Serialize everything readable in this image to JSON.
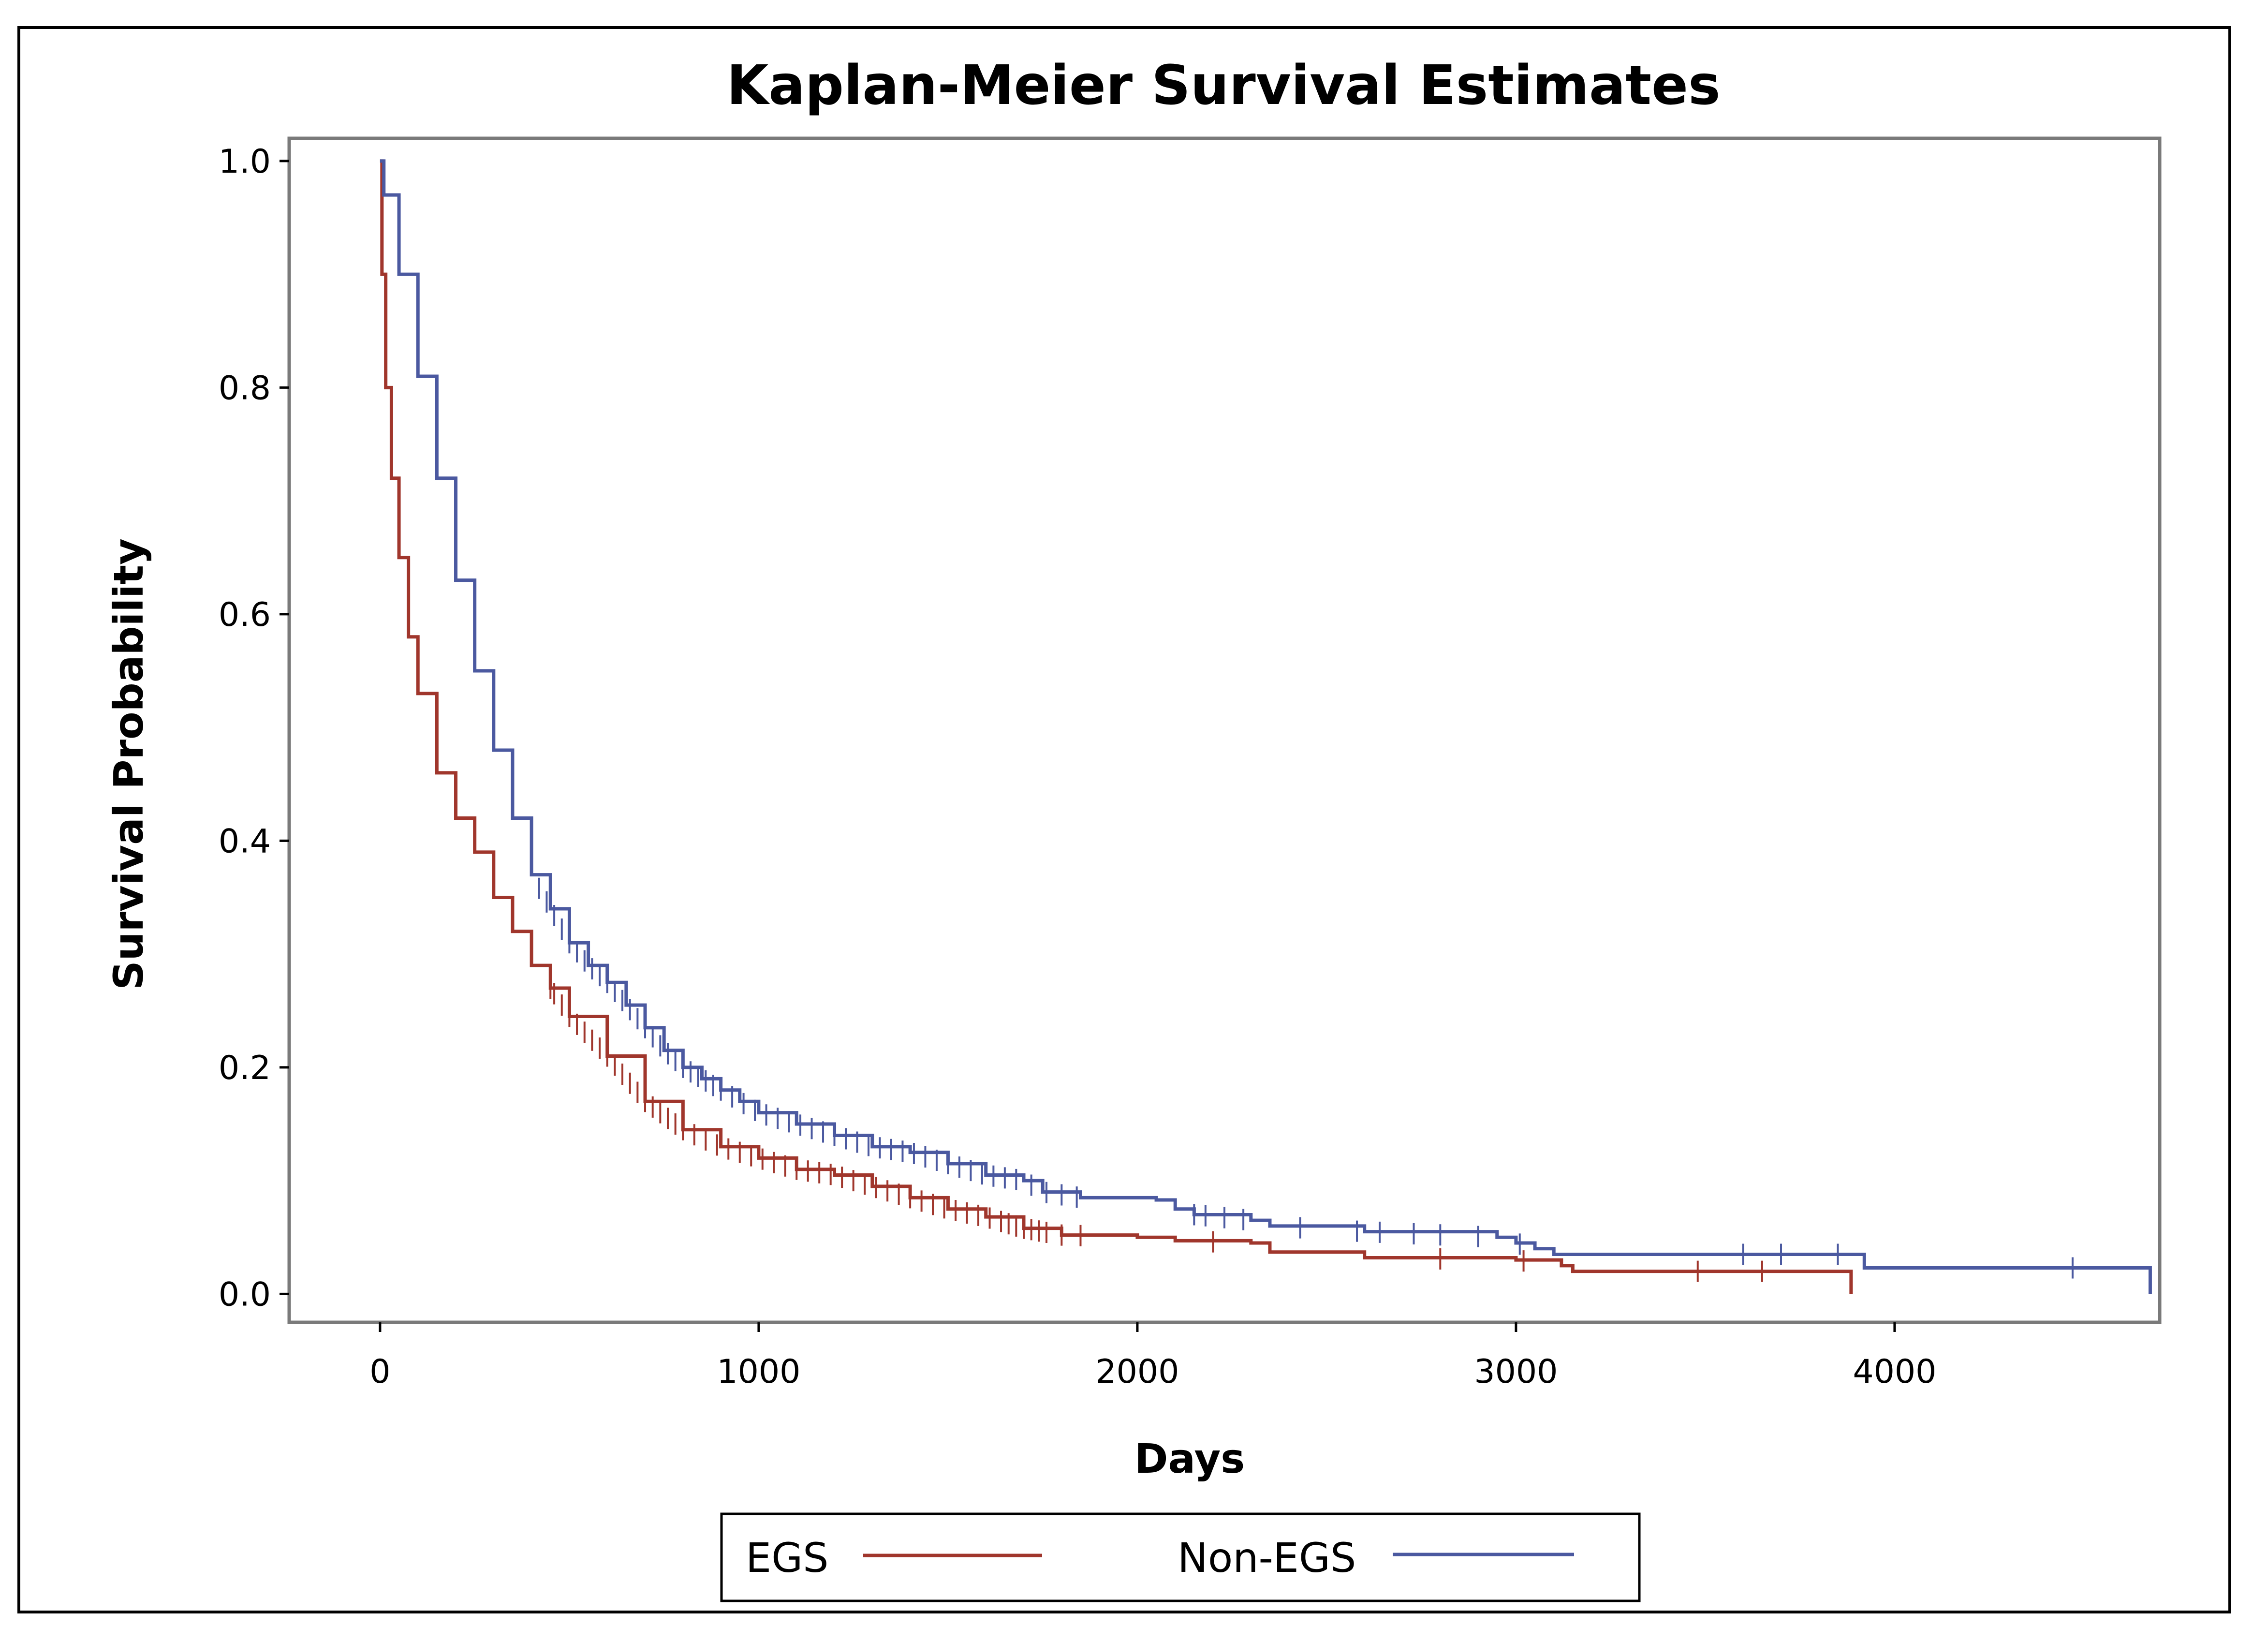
{
  "chart_data": {
    "type": "line",
    "title": "Kaplan-Meier Survival Estimates",
    "xlabel": "Days",
    "ylabel": "Survival Probability",
    "xlim": [
      -240,
      4700
    ],
    "ylim": [
      -0.025,
      1.02
    ],
    "x_ticks": [
      0,
      1000,
      2000,
      3000,
      4000
    ],
    "y_ticks": [
      0.0,
      0.2,
      0.4,
      0.6,
      0.8,
      1.0
    ],
    "x_tick_labels": [
      "0",
      "1000",
      "2000",
      "3000",
      "4000"
    ],
    "y_tick_labels": [
      "0.0",
      "0.2",
      "0.4",
      "0.6",
      "0.8",
      "1.0"
    ],
    "grid": false,
    "legend_position": "bottom",
    "series": [
      {
        "name": "EGS",
        "color": "#a0362c",
        "points": [
          [
            0,
            1.0
          ],
          [
            5,
            0.9
          ],
          [
            15,
            0.8
          ],
          [
            30,
            0.72
          ],
          [
            50,
            0.65
          ],
          [
            75,
            0.58
          ],
          [
            100,
            0.53
          ],
          [
            150,
            0.46
          ],
          [
            200,
            0.42
          ],
          [
            250,
            0.39
          ],
          [
            300,
            0.35
          ],
          [
            350,
            0.32
          ],
          [
            400,
            0.29
          ],
          [
            450,
            0.27
          ],
          [
            500,
            0.245
          ],
          [
            600,
            0.21
          ],
          [
            700,
            0.17
          ],
          [
            800,
            0.145
          ],
          [
            900,
            0.13
          ],
          [
            1000,
            0.12
          ],
          [
            1100,
            0.11
          ],
          [
            1200,
            0.105
          ],
          [
            1300,
            0.095
          ],
          [
            1400,
            0.085
          ],
          [
            1500,
            0.075
          ],
          [
            1600,
            0.068
          ],
          [
            1700,
            0.058
          ],
          [
            1800,
            0.052
          ],
          [
            2000,
            0.05
          ],
          [
            2100,
            0.047
          ],
          [
            2300,
            0.045
          ],
          [
            2350,
            0.037
          ],
          [
            2580,
            0.037
          ],
          [
            2600,
            0.032
          ],
          [
            3000,
            0.03
          ],
          [
            3120,
            0.025
          ],
          [
            3150,
            0.02
          ],
          [
            3880,
            0.02
          ],
          [
            3885,
            0.0
          ]
        ],
        "censor_x": [
          450,
          460,
          480,
          500,
          520,
          540,
          560,
          580,
          600,
          620,
          640,
          660,
          680,
          700,
          720,
          740,
          760,
          780,
          800,
          830,
          860,
          890,
          920,
          950,
          980,
          1010,
          1040,
          1070,
          1100,
          1130,
          1160,
          1190,
          1220,
          1250,
          1280,
          1310,
          1340,
          1370,
          1400,
          1430,
          1460,
          1490,
          1520,
          1550,
          1580,
          1610,
          1640,
          1660,
          1680,
          1700,
          1720,
          1740,
          1760,
          1800,
          1850,
          2200,
          2800,
          3020,
          3480,
          3650
        ]
      },
      {
        "name": "Non-EGS",
        "color": "#4b59a0",
        "points": [
          [
            0,
            1.0
          ],
          [
            10,
            0.97
          ],
          [
            50,
            0.9
          ],
          [
            100,
            0.81
          ],
          [
            150,
            0.72
          ],
          [
            200,
            0.63
          ],
          [
            250,
            0.55
          ],
          [
            300,
            0.48
          ],
          [
            350,
            0.42
          ],
          [
            400,
            0.37
          ],
          [
            450,
            0.34
          ],
          [
            500,
            0.31
          ],
          [
            550,
            0.29
          ],
          [
            600,
            0.275
          ],
          [
            650,
            0.255
          ],
          [
            700,
            0.235
          ],
          [
            750,
            0.215
          ],
          [
            800,
            0.2
          ],
          [
            850,
            0.19
          ],
          [
            900,
            0.18
          ],
          [
            950,
            0.17
          ],
          [
            1000,
            0.16
          ],
          [
            1100,
            0.15
          ],
          [
            1200,
            0.14
          ],
          [
            1300,
            0.13
          ],
          [
            1400,
            0.125
          ],
          [
            1500,
            0.115
          ],
          [
            1600,
            0.105
          ],
          [
            1700,
            0.1
          ],
          [
            1750,
            0.09
          ],
          [
            1850,
            0.085
          ],
          [
            2050,
            0.083
          ],
          [
            2100,
            0.075
          ],
          [
            2150,
            0.07
          ],
          [
            2300,
            0.065
          ],
          [
            2350,
            0.06
          ],
          [
            2600,
            0.055
          ],
          [
            2950,
            0.05
          ],
          [
            3000,
            0.045
          ],
          [
            3050,
            0.04
          ],
          [
            3100,
            0.035
          ],
          [
            3900,
            0.035
          ],
          [
            3920,
            0.023
          ],
          [
            4670,
            0.023
          ],
          [
            4675,
            0.0
          ]
        ],
        "censor_x": [
          420,
          440,
          460,
          480,
          500,
          520,
          540,
          560,
          580,
          600,
          620,
          640,
          660,
          680,
          700,
          720,
          740,
          760,
          780,
          800,
          820,
          840,
          860,
          880,
          900,
          930,
          960,
          990,
          1020,
          1050,
          1080,
          1110,
          1140,
          1170,
          1200,
          1230,
          1260,
          1290,
          1320,
          1350,
          1380,
          1410,
          1440,
          1470,
          1500,
          1530,
          1560,
          1590,
          1620,
          1650,
          1680,
          1720,
          1760,
          1800,
          1840,
          2150,
          2180,
          2230,
          2280,
          2430,
          2580,
          2640,
          2730,
          2800,
          2900,
          3010,
          3600,
          3700,
          3850,
          4470
        ]
      }
    ]
  },
  "legend": {
    "items": [
      {
        "label": "EGS",
        "color": "#a0362c"
      },
      {
        "label": "Non-EGS",
        "color": "#4b59a0"
      }
    ]
  }
}
